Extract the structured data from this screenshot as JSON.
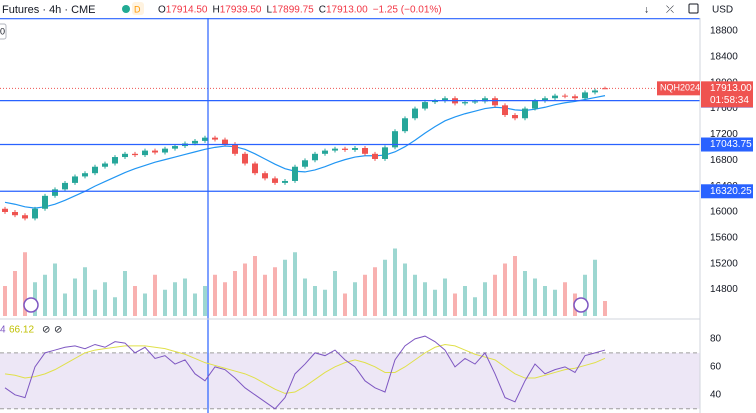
{
  "header": {
    "symbol": "Futures · 4h · CME",
    "badge": "D",
    "ohlc": [
      {
        "label": "O",
        "value": "17914.50"
      },
      {
        "label": "H",
        "value": "17939.50"
      },
      {
        "label": "L",
        "value": "17899.75"
      },
      {
        "label": "C",
        "value": "17913.00"
      }
    ],
    "change": "−1.25 (−0.01%)",
    "currency": "USD",
    "left_stub": "0"
  },
  "price_tag": {
    "symbol": "NQH2024",
    "price": "17913.00",
    "countdown": "01:58:34"
  },
  "chart_data": {
    "type": "candlestick",
    "up_color": "#26a69a",
    "down_color": "#ef5350",
    "ma_color": "#2196f3",
    "line_color": "#2962ff",
    "ylim": [
      14360,
      19001
    ],
    "yticks": [
      18800,
      18400,
      18000,
      17600,
      17200,
      16800,
      16400,
      16000,
      15600,
      15200,
      14800
    ],
    "candles": [
      [
        16050,
        16080,
        15970,
        16000
      ],
      [
        16000,
        16030,
        15920,
        15950
      ],
      [
        15950,
        15980,
        15870,
        15900
      ],
      [
        15900,
        16080,
        15870,
        16050
      ],
      [
        16050,
        16280,
        16020,
        16250
      ],
      [
        16250,
        16380,
        16220,
        16350
      ],
      [
        16350,
        16480,
        16320,
        16450
      ],
      [
        16450,
        16580,
        16420,
        16550
      ],
      [
        16550,
        16630,
        16520,
        16600
      ],
      [
        16600,
        16730,
        16570,
        16700
      ],
      [
        16700,
        16780,
        16670,
        16750
      ],
      [
        16750,
        16880,
        16720,
        16850
      ],
      [
        16850,
        16930,
        16820,
        16900
      ],
      [
        16900,
        16930,
        16850,
        16880
      ],
      [
        16880,
        16980,
        16850,
        16950
      ],
      [
        16950,
        16980,
        16890,
        16920
      ],
      [
        16920,
        17010,
        16890,
        16980
      ],
      [
        16980,
        17050,
        16950,
        17020
      ],
      [
        17020,
        17090,
        16990,
        17060
      ],
      [
        17060,
        17130,
        17030,
        17100
      ],
      [
        17100,
        17180,
        17070,
        17150
      ],
      [
        17150,
        17180,
        17090,
        17120
      ],
      [
        17120,
        17150,
        17020,
        17050
      ],
      [
        17050,
        17080,
        16870,
        16900
      ],
      [
        16900,
        16930,
        16720,
        16750
      ],
      [
        16750,
        16780,
        16570,
        16600
      ],
      [
        16600,
        16630,
        16490,
        16520
      ],
      [
        16520,
        16550,
        16420,
        16450
      ],
      [
        16450,
        16510,
        16420,
        16480
      ],
      [
        16480,
        16730,
        16450,
        16700
      ],
      [
        16700,
        16830,
        16670,
        16800
      ],
      [
        16800,
        16930,
        16770,
        16900
      ],
      [
        16900,
        16980,
        16870,
        16950
      ],
      [
        16950,
        17010,
        16920,
        16980
      ],
      [
        16980,
        17010,
        16930,
        16960
      ],
      [
        16960,
        17020,
        16930,
        16990
      ],
      [
        16990,
        17020,
        16870,
        16900
      ],
      [
        16900,
        16930,
        16790,
        16820
      ],
      [
        16820,
        17030,
        16790,
        17000
      ],
      [
        17000,
        17280,
        16970,
        17250
      ],
      [
        17250,
        17480,
        17220,
        17450
      ],
      [
        17450,
        17630,
        17420,
        17600
      ],
      [
        17600,
        17730,
        17570,
        17700
      ],
      [
        17700,
        17750,
        17670,
        17720
      ],
      [
        17720,
        17790,
        17690,
        17760
      ],
      [
        17760,
        17790,
        17650,
        17680
      ],
      [
        17680,
        17730,
        17650,
        17700
      ],
      [
        17700,
        17740,
        17670,
        17710
      ],
      [
        17710,
        17790,
        17680,
        17760
      ],
      [
        17760,
        17790,
        17620,
        17650
      ],
      [
        17650,
        17680,
        17470,
        17500
      ],
      [
        17500,
        17530,
        17420,
        17450
      ],
      [
        17450,
        17630,
        17420,
        17600
      ],
      [
        17600,
        17750,
        17570,
        17720
      ],
      [
        17720,
        17790,
        17690,
        17760
      ],
      [
        17760,
        17830,
        17730,
        17800
      ],
      [
        17800,
        17830,
        17760,
        17790
      ],
      [
        17790,
        17820,
        17730,
        17760
      ],
      [
        17760,
        17880,
        17730,
        17850
      ],
      [
        17850,
        17910,
        17820,
        17880
      ],
      [
        17914.5,
        17939.5,
        17899.75,
        17913
      ]
    ],
    "ma": [
      16150,
      16120,
      16080,
      16060,
      16080,
      16120,
      16180,
      16250,
      16320,
      16400,
      16470,
      16540,
      16610,
      16670,
      16720,
      16770,
      16810,
      16850,
      16890,
      16930,
      16970,
      17000,
      17020,
      17010,
      16970,
      16900,
      16820,
      16740,
      16670,
      16630,
      16620,
      16650,
      16700,
      16760,
      16810,
      16850,
      16870,
      16870,
      16880,
      16930,
      17010,
      17110,
      17220,
      17320,
      17410,
      17470,
      17520,
      17560,
      17600,
      17620,
      17610,
      17580,
      17570,
      17590,
      17620,
      17660,
      17690,
      17710,
      17740,
      17770,
      17800
    ],
    "hlines": [
      17723.25,
      17043.75,
      16320.25
    ],
    "top_line": 18990,
    "volume": [
      40,
      60,
      85,
      45,
      55,
      70,
      30,
      50,
      65,
      35,
      45,
      25,
      60,
      40,
      30,
      55,
      35,
      45,
      50,
      30,
      40,
      55,
      45,
      60,
      70,
      80,
      55,
      65,
      75,
      85,
      50,
      40,
      35,
      60,
      30,
      45,
      55,
      65,
      75,
      90,
      70,
      55,
      45,
      35,
      50,
      30,
      40,
      25,
      45,
      55,
      70,
      80,
      60,
      50,
      40,
      35,
      45,
      30,
      55,
      75,
      20
    ],
    "volume_lim": [
      0,
      100
    ],
    "rsi_legend": "4",
    "rsi": [
      45,
      40,
      38,
      60,
      70,
      72,
      74,
      75,
      73,
      76,
      74,
      78,
      77,
      70,
      74,
      66,
      68,
      62,
      65,
      55,
      50,
      60,
      58,
      52,
      45,
      40,
      35,
      30,
      38,
      55,
      62,
      70,
      68,
      72,
      65,
      60,
      50,
      45,
      42,
      65,
      75,
      80,
      82,
      78,
      72,
      60,
      66,
      62,
      70,
      55,
      38,
      35,
      50,
      62,
      55,
      58,
      60,
      56,
      68,
      70,
      72
    ],
    "rsi_ma": [
      55,
      54,
      52,
      53,
      55,
      58,
      62,
      66,
      70,
      72,
      73,
      74,
      75,
      75,
      75,
      74,
      73,
      71,
      69,
      66,
      63,
      61,
      59,
      57,
      55,
      52,
      48,
      44,
      41,
      42,
      46,
      51,
      56,
      60,
      63,
      65,
      63,
      60,
      56,
      56,
      60,
      65,
      70,
      74,
      76,
      75,
      72,
      69,
      67,
      65,
      60,
      55,
      52,
      52,
      54,
      56,
      58,
      59,
      61,
      63,
      66.12
    ],
    "rsi_color": "#7e57c2",
    "rsi_ma_color": "#e0e04a",
    "rsi_ylim": [
      27,
      93.5
    ],
    "rsi_yticks": [
      80,
      60,
      40
    ],
    "rsi_bands": [
      70,
      30
    ]
  }
}
